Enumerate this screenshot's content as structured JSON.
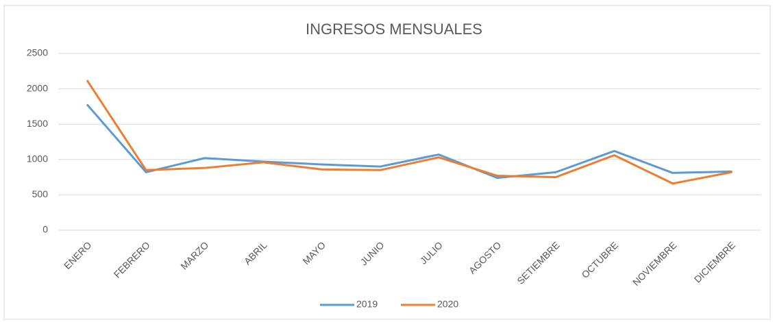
{
  "chart_data": {
    "type": "line",
    "title": "INGRESOS MENSUALES",
    "categories": [
      "ENERO",
      "FEBRERO",
      "MARZO",
      "ABRIL",
      "MAYO",
      "JUNIO",
      "JULIO",
      "AGOSTO",
      "SETIEMBRE",
      "OCTUBRE",
      "NOVIEMBRE",
      "DICIEMBRE"
    ],
    "series": [
      {
        "name": "2019",
        "color": "#5b9bd5",
        "values": [
          1770,
          820,
          1020,
          970,
          930,
          900,
          1070,
          740,
          820,
          1120,
          810,
          830
        ]
      },
      {
        "name": "2020",
        "color": "#ed7d31",
        "values": [
          2110,
          850,
          880,
          960,
          860,
          850,
          1030,
          770,
          750,
          1060,
          660,
          820
        ]
      }
    ],
    "ylim": [
      0,
      2500
    ],
    "yticks": [
      0,
      500,
      1000,
      1500,
      2000,
      2500
    ],
    "grid": true,
    "legend": "bottom"
  }
}
